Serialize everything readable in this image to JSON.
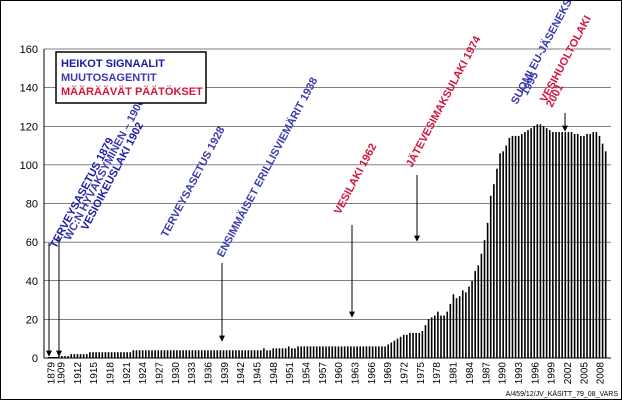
{
  "chart_data": {
    "type": "bar",
    "ylim": [
      0,
      160
    ],
    "yticks": [
      "0",
      "20",
      "40",
      "60",
      "80",
      "100",
      "120",
      "140",
      "160"
    ],
    "x_start": 1879,
    "x_end": 2010,
    "xtick_labels": [
      "1879",
      "1909",
      "1912",
      "1915",
      "1918",
      "1921",
      "1924",
      "1927",
      "1930",
      "1933",
      "1936",
      "1939",
      "1942",
      "1945",
      "1948",
      "1951",
      "1954",
      "1957",
      "1960",
      "1963",
      "1966",
      "1969",
      "1972",
      "1975",
      "1978",
      "1981",
      "1984",
      "1987",
      "1990",
      "1993",
      "1996",
      "1999",
      "2002",
      "2005",
      "2008"
    ],
    "gridlines": true,
    "values": [
      0.5,
      0.5,
      0.5,
      0.5,
      0.5,
      0.5,
      0.5,
      0.5,
      0.5,
      0.5,
      0.5,
      0.5,
      0.5,
      0.5,
      0.5,
      0.5,
      0.5,
      0.5,
      0.5,
      0.5,
      0.5,
      0.5,
      0.5,
      0.5,
      0.5,
      0.5,
      0.5,
      0.5,
      0.5,
      0.5,
      1,
      1,
      1,
      1,
      2,
      2,
      2,
      2,
      2,
      2,
      3,
      3,
      3,
      3,
      3,
      3,
      3,
      3,
      3,
      3,
      3,
      3,
      3,
      3,
      4,
      4,
      4,
      4,
      4,
      4,
      4,
      4,
      4,
      4,
      4,
      4,
      4,
      4,
      4,
      4,
      4,
      4,
      4,
      4,
      4,
      4,
      4,
      4,
      4,
      4,
      4,
      4,
      4,
      4,
      4,
      4,
      4,
      4,
      4,
      4,
      4,
      4,
      4,
      4,
      4,
      4,
      5,
      4,
      4,
      5,
      5,
      5,
      5,
      5,
      6,
      5,
      5,
      6,
      6,
      6,
      6,
      6,
      6,
      6,
      6,
      6,
      6,
      6,
      6,
      6,
      6,
      6,
      6,
      6,
      6,
      6,
      6,
      6,
      6,
      6,
      6,
      6,
      6,
      6,
      6,
      6,
      7,
      8,
      9,
      10,
      11,
      12,
      12,
      13,
      13,
      13,
      13,
      14,
      17,
      20,
      21,
      22,
      24,
      22,
      22,
      24,
      28,
      33,
      31,
      32,
      35,
      34,
      37,
      40,
      45,
      48,
      54,
      61,
      70,
      84,
      90,
      98,
      106,
      107,
      110,
      114,
      115,
      115,
      115,
      116,
      117,
      118,
      119,
      120,
      121,
      121,
      120,
      119,
      118,
      117,
      117,
      117,
      117,
      117,
      117,
      117,
      116,
      116,
      115,
      115,
      116,
      116,
      117,
      117,
      115,
      111,
      107
    ],
    "legend": [
      {
        "label": "HEIKOT SIGNAALIT",
        "color": "#1a1aa6"
      },
      {
        "label": "MUUTOSAGENTIT",
        "color": "#3a3ab0"
      },
      {
        "label": "MÄÄRÄÄVÄT PÄÄTÖKSET",
        "color": "#d4143c"
      }
    ],
    "annotations": [
      {
        "text": "TERVEYSASETUS 1879",
        "color": "#1a1aa6",
        "x": 1879
      },
      {
        "text": "WC:N HYVÄKSYMINEN – 1900",
        "color": "#3a3ab0",
        "x": 1909
      },
      {
        "text": "VESIOIKEUSLAKI 1902",
        "color": "#1a1aa6",
        "x": 1909
      },
      {
        "text": "TERVEYSASETUS 1928",
        "color": "#3a3ab0",
        "x": null
      },
      {
        "text": "ENSIMMÄISET ERILLISVIEMÄRIT 1938",
        "color": "#3a3ab0",
        "x": 1938
      },
      {
        "text": "VESILAKI 1962",
        "color": "#d4143c",
        "x": 1962
      },
      {
        "text": "JÄTEVESIMAKSULAKI 1974",
        "color": "#d4143c",
        "x": 1974
      },
      {
        "text": "SUOMI EU-JÄSENEKSI",
        "color": "#3a3ab0",
        "x": null
      },
      {
        "text": "1995",
        "color": "#3a3ab0",
        "x": null
      },
      {
        "text": "VESIHUOLTOLAKI",
        "color": "#d4143c",
        "x": 2001
      },
      {
        "text": "2001",
        "color": "#d4143c",
        "x": 2001
      }
    ]
  },
  "footnote": "A/459/12/JV_KÄSITT_79_08_VARS"
}
